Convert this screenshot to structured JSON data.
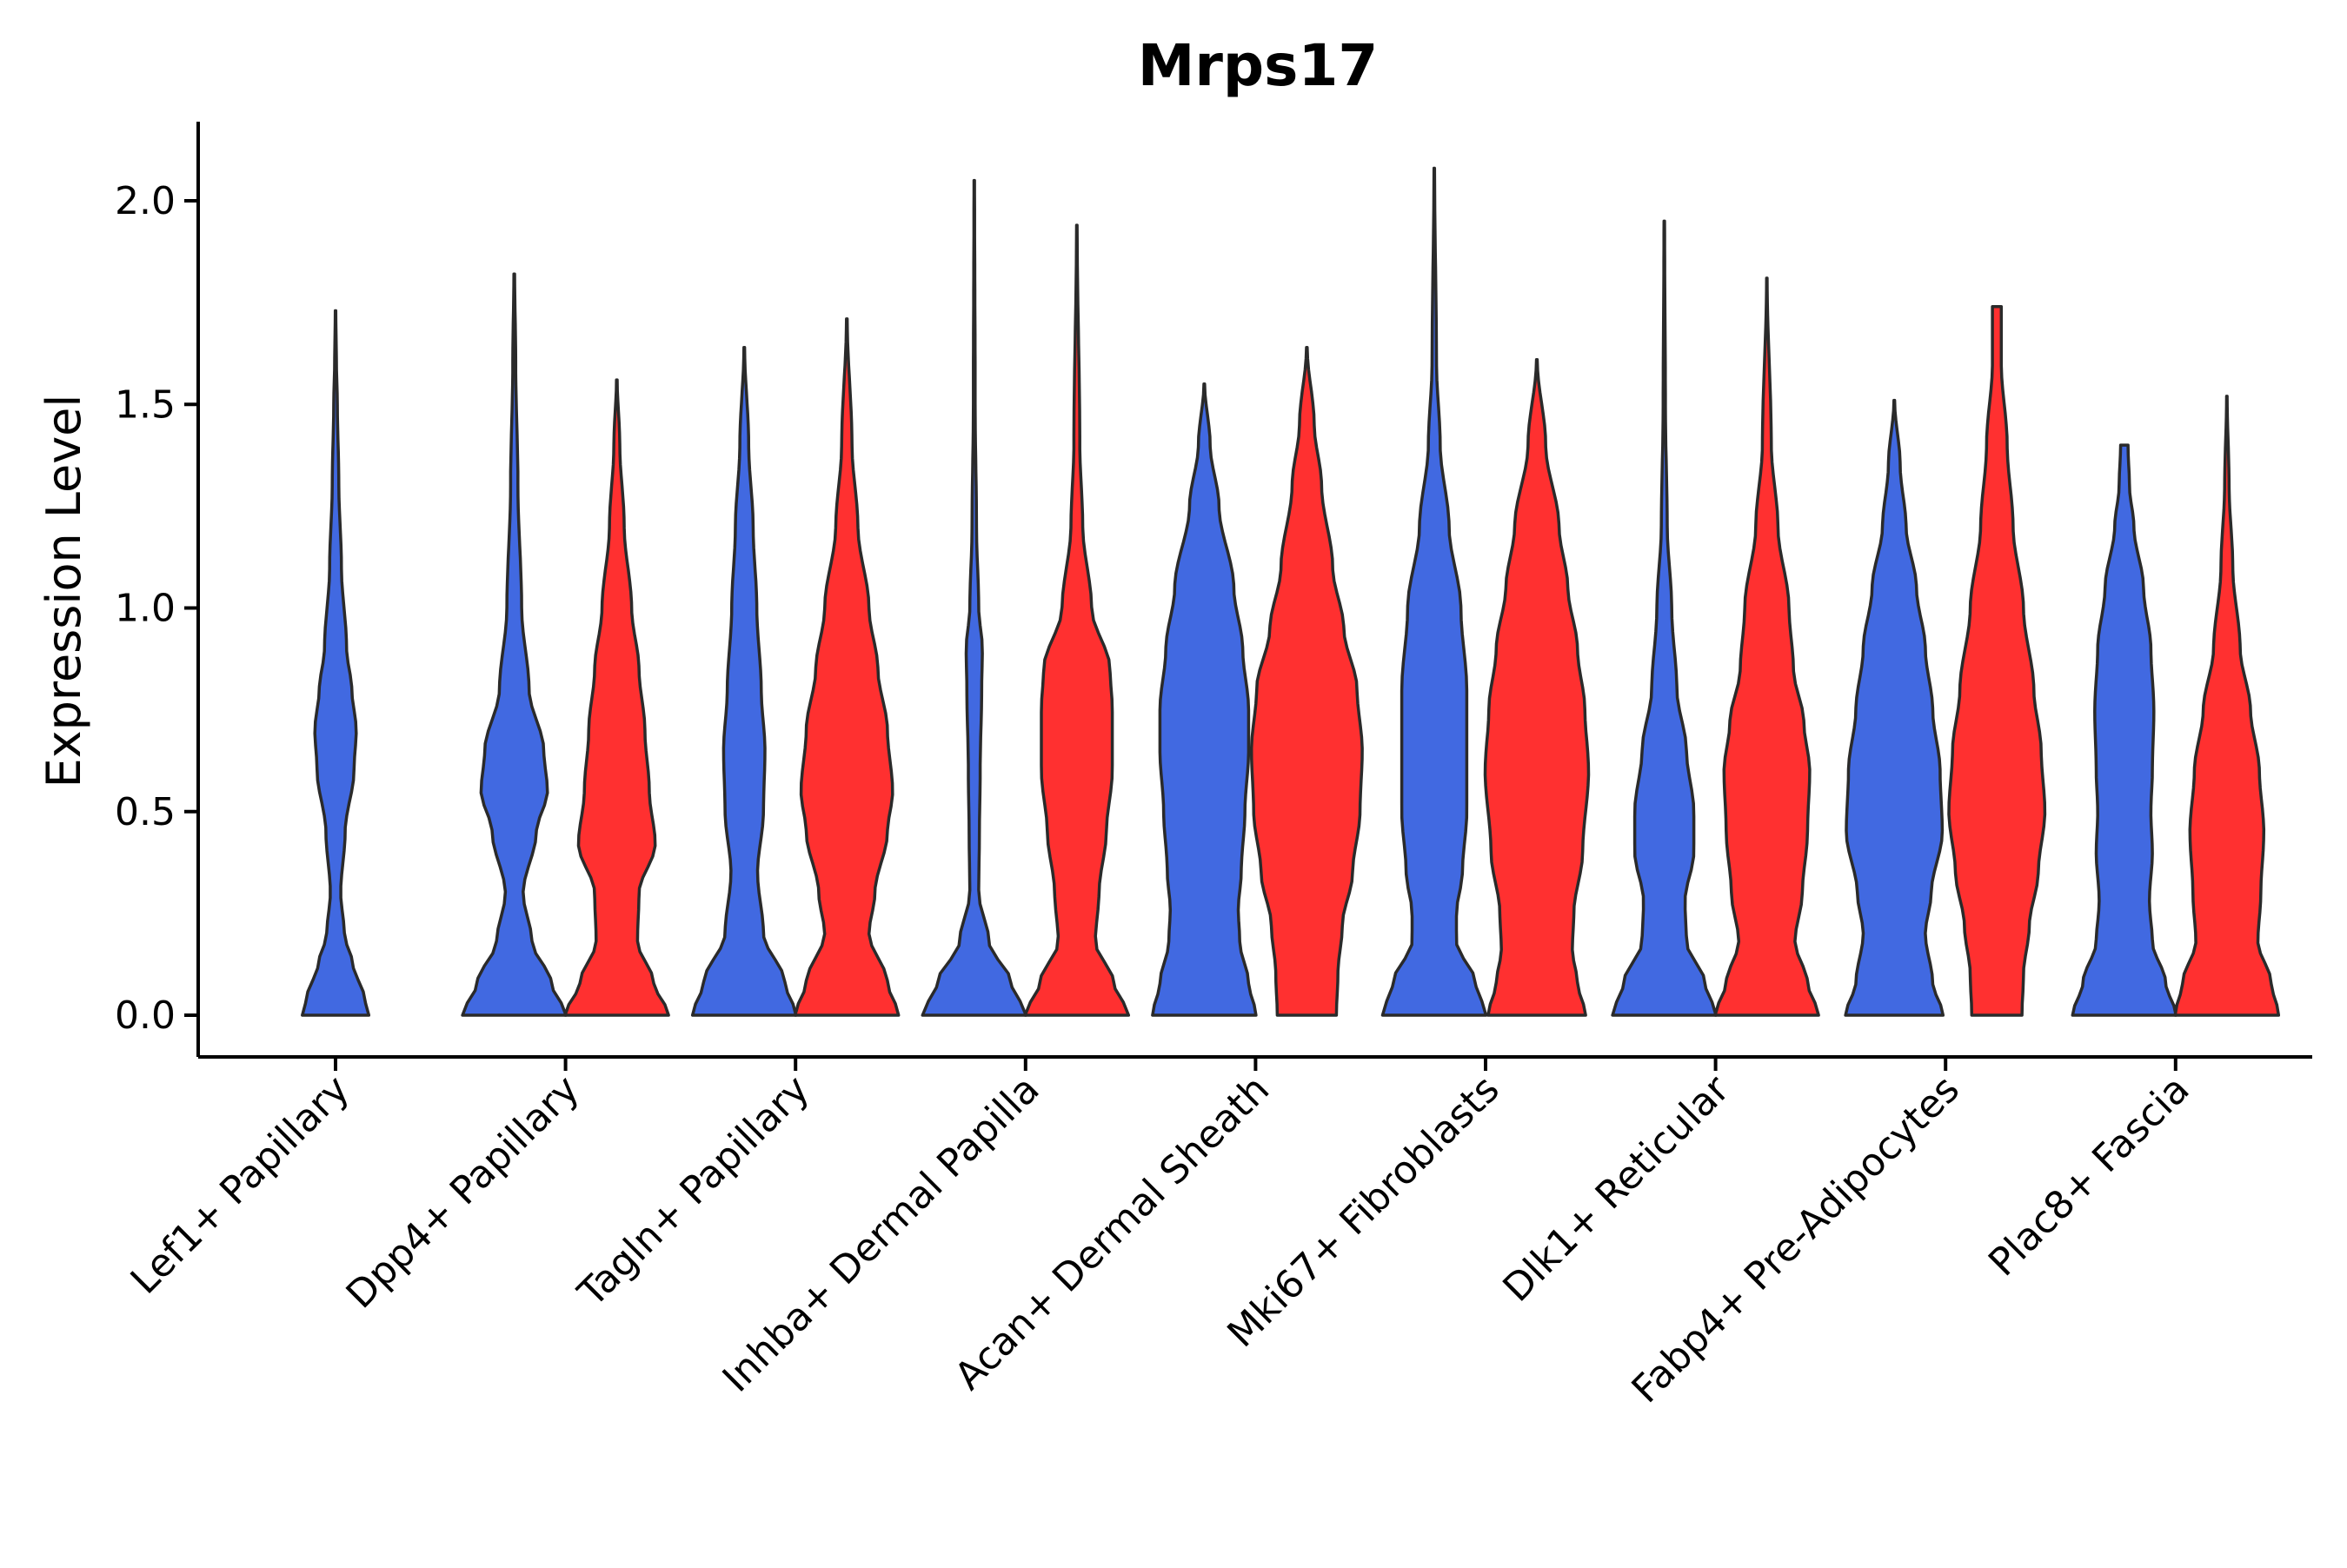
{
  "chart_data": {
    "type": "violin",
    "title": "Mrps17",
    "xlabel": "",
    "ylabel": "Expression Level",
    "ylim": [
      -0.1,
      2.2
    ],
    "yticks": [
      0.0,
      0.5,
      1.0,
      1.5,
      2.0
    ],
    "ytick_labels": [
      "0.0",
      "0.5",
      "1.0",
      "1.5",
      "2.0"
    ],
    "split_colors": [
      "#4169E1",
      "#FF3030"
    ],
    "grid": false,
    "legend": "none",
    "categories": [
      {
        "name": "Lef1+ Papillary",
        "violins": [
          {
            "color_index": 0,
            "max": 1.73,
            "profile": [
              [
                0.0,
                0.45
              ],
              [
                0.05,
                0.38
              ],
              [
                0.12,
                0.24
              ],
              [
                0.2,
                0.12
              ],
              [
                0.3,
                0.07
              ],
              [
                0.45,
                0.13
              ],
              [
                0.6,
                0.25
              ],
              [
                0.7,
                0.28
              ],
              [
                0.8,
                0.22
              ],
              [
                0.9,
                0.15
              ],
              [
                1.1,
                0.08
              ],
              [
                1.3,
                0.045
              ],
              [
                1.5,
                0.025
              ],
              [
                1.6,
                0.012
              ],
              [
                1.73,
                0.004
              ]
            ]
          }
        ]
      },
      {
        "name": "Dpp4+ Papillary",
        "violins": [
          {
            "color_index": 0,
            "max": 1.82,
            "profile": [
              [
                0.0,
                0.7
              ],
              [
                0.08,
                0.5
              ],
              [
                0.18,
                0.24
              ],
              [
                0.3,
                0.12
              ],
              [
                0.45,
                0.3
              ],
              [
                0.55,
                0.45
              ],
              [
                0.65,
                0.4
              ],
              [
                0.8,
                0.2
              ],
              [
                1.0,
                0.1
              ],
              [
                1.3,
                0.05
              ],
              [
                1.6,
                0.02
              ],
              [
                1.82,
                0.005
              ]
            ]
          },
          {
            "color_index": 1,
            "max": 1.56,
            "profile": [
              [
                0.0,
                0.7
              ],
              [
                0.08,
                0.5
              ],
              [
                0.18,
                0.28
              ],
              [
                0.3,
                0.3
              ],
              [
                0.42,
                0.52
              ],
              [
                0.55,
                0.44
              ],
              [
                0.7,
                0.38
              ],
              [
                0.85,
                0.3
              ],
              [
                1.0,
                0.2
              ],
              [
                1.2,
                0.1
              ],
              [
                1.4,
                0.04
              ],
              [
                1.56,
                0.005
              ]
            ]
          }
        ]
      },
      {
        "name": "Tagln+ Papillary",
        "violins": [
          {
            "color_index": 0,
            "max": 1.64,
            "profile": [
              [
                0.0,
                0.7
              ],
              [
                0.08,
                0.55
              ],
              [
                0.2,
                0.26
              ],
              [
                0.35,
                0.18
              ],
              [
                0.5,
                0.26
              ],
              [
                0.65,
                0.28
              ],
              [
                0.8,
                0.23
              ],
              [
                1.0,
                0.17
              ],
              [
                1.2,
                0.12
              ],
              [
                1.4,
                0.06
              ],
              [
                1.64,
                0.005
              ]
            ]
          },
          {
            "color_index": 1,
            "max": 1.71,
            "profile": [
              [
                0.0,
                0.7
              ],
              [
                0.08,
                0.55
              ],
              [
                0.2,
                0.3
              ],
              [
                0.3,
                0.38
              ],
              [
                0.45,
                0.55
              ],
              [
                0.55,
                0.62
              ],
              [
                0.7,
                0.55
              ],
              [
                0.85,
                0.42
              ],
              [
                1.0,
                0.3
              ],
              [
                1.2,
                0.15
              ],
              [
                1.4,
                0.07
              ],
              [
                1.71,
                0.005
              ]
            ]
          }
        ]
      },
      {
        "name": "Inhba+ Dermal Papilla",
        "violins": [
          {
            "color_index": 0,
            "max": 2.05,
            "profile": [
              [
                0.0,
                0.7
              ],
              [
                0.08,
                0.5
              ],
              [
                0.18,
                0.2
              ],
              [
                0.3,
                0.06
              ],
              [
                0.45,
                0.07
              ],
              [
                0.6,
                0.08
              ],
              [
                0.8,
                0.1
              ],
              [
                0.9,
                0.11
              ],
              [
                1.0,
                0.06
              ],
              [
                1.2,
                0.03
              ],
              [
                1.5,
                0.012
              ],
              [
                2.05,
                0.004
              ]
            ]
          },
          {
            "color_index": 1,
            "max": 1.94,
            "profile": [
              [
                0.0,
                0.7
              ],
              [
                0.08,
                0.5
              ],
              [
                0.18,
                0.25
              ],
              [
                0.3,
                0.3
              ],
              [
                0.45,
                0.4
              ],
              [
                0.6,
                0.48
              ],
              [
                0.75,
                0.48
              ],
              [
                0.85,
                0.45
              ],
              [
                1.0,
                0.2
              ],
              [
                1.2,
                0.08
              ],
              [
                1.4,
                0.04
              ],
              [
                1.94,
                0.004
              ]
            ]
          }
        ]
      },
      {
        "name": "Acan+ Dermal Sheath",
        "violins": [
          {
            "color_index": 0,
            "max": 1.55,
            "profile": [
              [
                0.0,
                0.7
              ],
              [
                0.08,
                0.6
              ],
              [
                0.18,
                0.48
              ],
              [
                0.26,
                0.46
              ],
              [
                0.35,
                0.5
              ],
              [
                0.5,
                0.55
              ],
              [
                0.65,
                0.6
              ],
              [
                0.75,
                0.6
              ],
              [
                0.9,
                0.52
              ],
              [
                1.05,
                0.4
              ],
              [
                1.25,
                0.2
              ],
              [
                1.4,
                0.08
              ],
              [
                1.55,
                0.005
              ]
            ]
          },
          {
            "color_index": 1,
            "max": 1.64,
            "profile": [
              [
                0.0,
                0.4
              ],
              [
                0.1,
                0.42
              ],
              [
                0.22,
                0.48
              ],
              [
                0.35,
                0.62
              ],
              [
                0.5,
                0.72
              ],
              [
                0.65,
                0.75
              ],
              [
                0.8,
                0.68
              ],
              [
                0.95,
                0.5
              ],
              [
                1.1,
                0.35
              ],
              [
                1.3,
                0.2
              ],
              [
                1.45,
                0.1
              ],
              [
                1.64,
                0.005
              ]
            ]
          }
        ]
      },
      {
        "name": "Mki67+ Fibroblasts",
        "violins": [
          {
            "color_index": 0,
            "max": 2.08,
            "profile": [
              [
                0.0,
                0.7
              ],
              [
                0.08,
                0.56
              ],
              [
                0.18,
                0.3
              ],
              [
                0.25,
                0.3
              ],
              [
                0.35,
                0.38
              ],
              [
                0.5,
                0.44
              ],
              [
                0.65,
                0.44
              ],
              [
                0.8,
                0.44
              ],
              [
                1.0,
                0.36
              ],
              [
                1.2,
                0.2
              ],
              [
                1.4,
                0.08
              ],
              [
                1.6,
                0.03
              ],
              [
                2.08,
                0.004
              ]
            ]
          },
          {
            "color_index": 1,
            "max": 1.61,
            "profile": [
              [
                0.0,
                0.66
              ],
              [
                0.08,
                0.55
              ],
              [
                0.16,
                0.48
              ],
              [
                0.25,
                0.5
              ],
              [
                0.4,
                0.62
              ],
              [
                0.6,
                0.7
              ],
              [
                0.75,
                0.65
              ],
              [
                0.9,
                0.55
              ],
              [
                1.05,
                0.42
              ],
              [
                1.2,
                0.3
              ],
              [
                1.4,
                0.12
              ],
              [
                1.61,
                0.005
              ]
            ]
          }
        ]
      },
      {
        "name": "Dlk1+ Reticular",
        "violins": [
          {
            "color_index": 0,
            "max": 1.95,
            "profile": [
              [
                0.0,
                0.7
              ],
              [
                0.08,
                0.55
              ],
              [
                0.18,
                0.3
              ],
              [
                0.28,
                0.28
              ],
              [
                0.4,
                0.4
              ],
              [
                0.5,
                0.4
              ],
              [
                0.65,
                0.3
              ],
              [
                0.8,
                0.17
              ],
              [
                1.0,
                0.1
              ],
              [
                1.2,
                0.04
              ],
              [
                1.5,
                0.015
              ],
              [
                1.95,
                0.004
              ]
            ]
          },
          {
            "color_index": 1,
            "max": 1.81,
            "profile": [
              [
                0.0,
                0.7
              ],
              [
                0.08,
                0.55
              ],
              [
                0.18,
                0.38
              ],
              [
                0.3,
                0.48
              ],
              [
                0.45,
                0.55
              ],
              [
                0.6,
                0.58
              ],
              [
                0.72,
                0.5
              ],
              [
                0.85,
                0.36
              ],
              [
                1.0,
                0.3
              ],
              [
                1.2,
                0.15
              ],
              [
                1.4,
                0.06
              ],
              [
                1.81,
                0.004
              ]
            ]
          }
        ]
      },
      {
        "name": "Fabp4+ Pre-Adipocytes",
        "violins": [
          {
            "color_index": 0,
            "max": 1.51,
            "profile": [
              [
                0.0,
                0.66
              ],
              [
                0.08,
                0.52
              ],
              [
                0.2,
                0.42
              ],
              [
                0.3,
                0.5
              ],
              [
                0.45,
                0.65
              ],
              [
                0.6,
                0.62
              ],
              [
                0.75,
                0.52
              ],
              [
                0.9,
                0.42
              ],
              [
                1.05,
                0.3
              ],
              [
                1.2,
                0.16
              ],
              [
                1.35,
                0.08
              ],
              [
                1.51,
                0.005
              ]
            ]
          },
          {
            "color_index": 1,
            "max": 1.74,
            "profile": [
              [
                0.0,
                0.34
              ],
              [
                0.1,
                0.36
              ],
              [
                0.22,
                0.44
              ],
              [
                0.35,
                0.56
              ],
              [
                0.5,
                0.65
              ],
              [
                0.65,
                0.6
              ],
              [
                0.8,
                0.5
              ],
              [
                1.0,
                0.36
              ],
              [
                1.2,
                0.22
              ],
              [
                1.4,
                0.14
              ],
              [
                1.6,
                0.06
              ],
              [
                1.74,
                0.06
              ]
            ]
          }
        ]
      },
      {
        "name": "Plac8+ Fascia",
        "violins": [
          {
            "color_index": 0,
            "max": 1.4,
            "profile": [
              [
                0.0,
                0.7
              ],
              [
                0.08,
                0.56
              ],
              [
                0.18,
                0.38
              ],
              [
                0.28,
                0.34
              ],
              [
                0.4,
                0.38
              ],
              [
                0.5,
                0.36
              ],
              [
                0.6,
                0.38
              ],
              [
                0.75,
                0.4
              ],
              [
                0.9,
                0.36
              ],
              [
                1.05,
                0.26
              ],
              [
                1.2,
                0.13
              ],
              [
                1.3,
                0.07
              ],
              [
                1.4,
                0.05
              ]
            ]
          },
          {
            "color_index": 1,
            "max": 1.52,
            "profile": [
              [
                0.0,
                0.7
              ],
              [
                0.08,
                0.6
              ],
              [
                0.18,
                0.42
              ],
              [
                0.3,
                0.46
              ],
              [
                0.45,
                0.5
              ],
              [
                0.6,
                0.44
              ],
              [
                0.75,
                0.32
              ],
              [
                0.9,
                0.18
              ],
              [
                1.1,
                0.08
              ],
              [
                1.3,
                0.03
              ],
              [
                1.52,
                0.004
              ]
            ]
          }
        ]
      }
    ]
  }
}
